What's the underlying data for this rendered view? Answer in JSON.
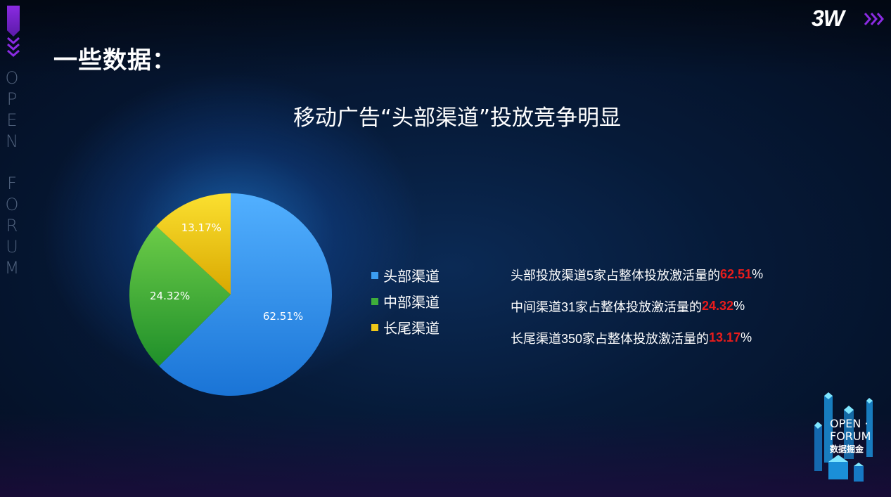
{
  "header": {
    "page_title": "一些数据：",
    "brand": "3W",
    "side_text": [
      "O",
      "P",
      "E",
      "N",
      "",
      "F",
      "O",
      "R",
      "U",
      "M"
    ]
  },
  "chart_data": {
    "type": "pie",
    "title": "移动广告“头部渠道”投放竞争明显",
    "categories": [
      "头部渠道",
      "中部渠道",
      "长尾渠道"
    ],
    "values": [
      62.51,
      24.32,
      13.17
    ],
    "labels": [
      "62.51%",
      "24.32%",
      "13.17%"
    ],
    "colors": [
      "#3b9cf0",
      "#3fae3a",
      "#f0c818"
    ],
    "legend_position": "right"
  },
  "notes": [
    {
      "prefix": "头部投放渠道5家占整体投放激活量的",
      "value": "62.51",
      "suffix": "%"
    },
    {
      "prefix": "中间渠道31家占整体投放激活量的",
      "value": "24.32",
      "suffix": "%"
    },
    {
      "prefix": "长尾渠道350家占整体投放激活量的",
      "value": "13.17",
      "suffix": "%"
    }
  ],
  "highlight_color": "#e81c1c",
  "logo": {
    "line1": "OPEN ·",
    "line2": "FORUM",
    "line3": "数据掘金"
  }
}
